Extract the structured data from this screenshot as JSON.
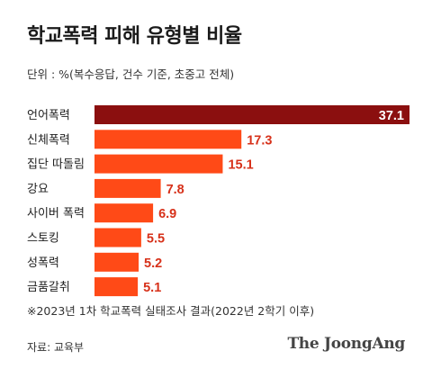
{
  "title": "학교폭력 피해 유형별 비율",
  "subtitle": "단위 : %(복수응답, 건수 기준, 초중고 전체)",
  "note": "※2023년 1차 학교폭력 실태조사 결과(2022년 2학기 이후)",
  "source": "자료: 교육부",
  "brand": "The JoongAng",
  "colors": {
    "highlight_bar": "#8b0f0f",
    "bar": "#ff4a17",
    "value_label": "#d7311a",
    "value_label_inside": "#ffffff",
    "category_label": "#222222"
  },
  "chart_data": {
    "type": "bar",
    "orientation": "horizontal",
    "categories": [
      "언어폭력",
      "신체폭력",
      "집단 따돌림",
      "강요",
      "사이버 폭력",
      "스토킹",
      "성폭력",
      "금품갈취"
    ],
    "values": [
      37.1,
      17.3,
      15.1,
      7.8,
      6.9,
      5.5,
      5.2,
      5.1
    ],
    "xlim": [
      0,
      37.1
    ],
    "grid": false,
    "legend": false
  }
}
